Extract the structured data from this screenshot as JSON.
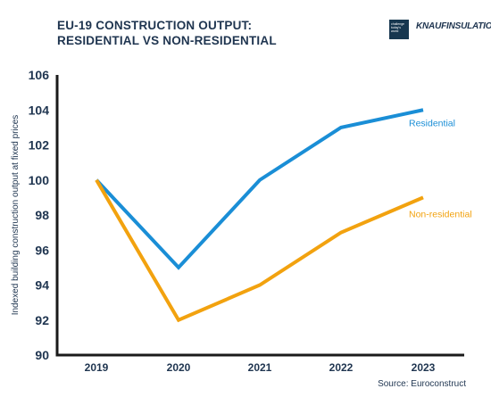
{
  "header": {
    "title_line1": "EU-19 CONSTRUCTION OUTPUT:",
    "title_line2": "RESIDENTIAL VS NON-RESIDENTIAL",
    "badge_text": "challenge today's world",
    "brand_name": "KNAUFINSULATION"
  },
  "source": "Source: Euroconstruct",
  "colors": {
    "residential": "#1a8ed6",
    "non_residential": "#f2a20f",
    "axis": "#1a1a1a",
    "text": "#1f3550"
  },
  "chart_data": {
    "type": "line",
    "x": [
      "2019",
      "2020",
      "2021",
      "2022",
      "2023"
    ],
    "ylabel": "Indexed building construction output at fixed prices",
    "xlabel": "",
    "ylim": [
      90,
      106
    ],
    "yticks": [
      "90",
      "92",
      "94",
      "96",
      "98",
      "100",
      "102",
      "104",
      "106"
    ],
    "grid": false,
    "series": [
      {
        "name": "Residential",
        "values": [
          100,
          95,
          100,
          103,
          104
        ]
      },
      {
        "name": "Non-residential",
        "values": [
          100,
          92,
          94,
          97,
          99
        ]
      }
    ]
  }
}
